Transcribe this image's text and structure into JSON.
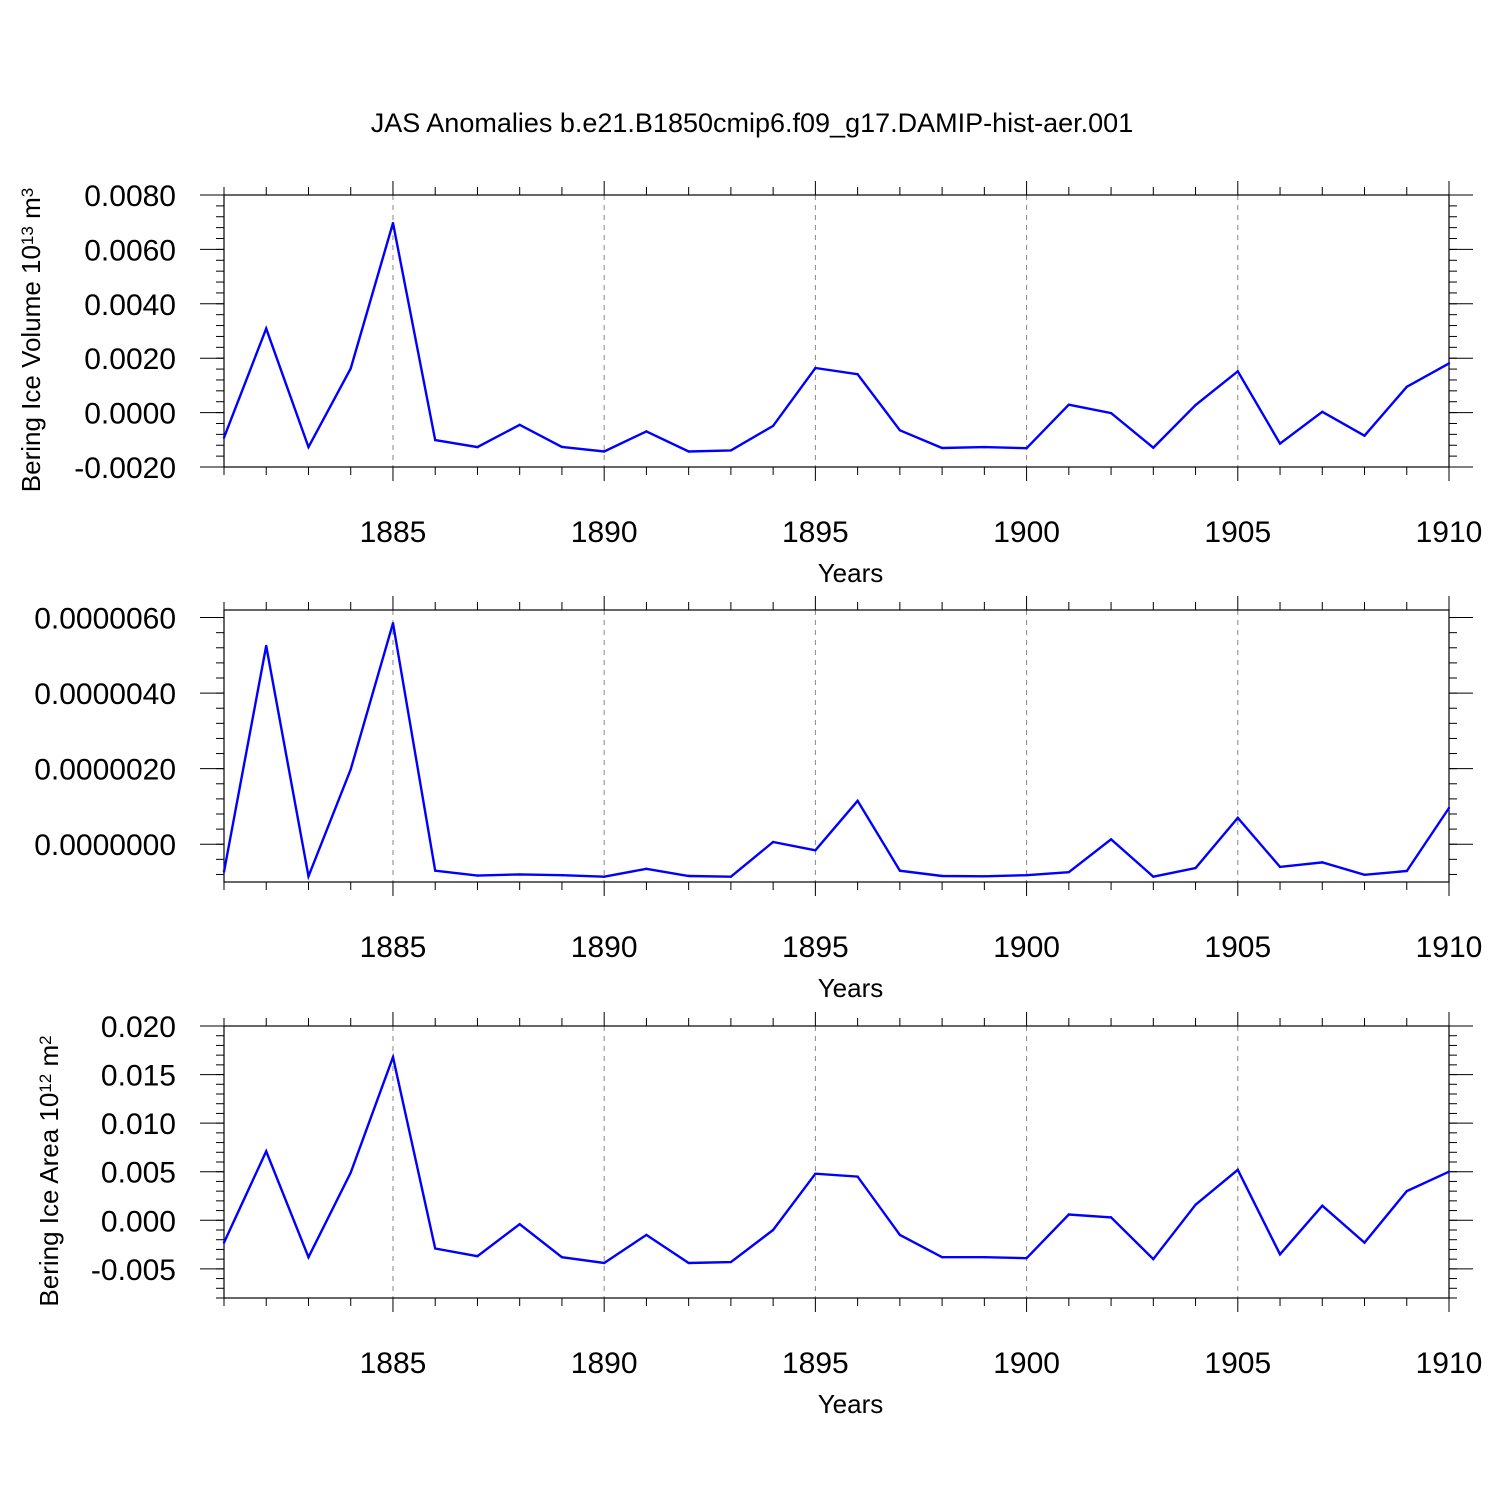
{
  "title": "JAS Anomalies b.e21.B1850cmip6.f09_g17.DAMIP-hist-aer.001",
  "colors": {
    "series": "#0000ff",
    "axis": "#000000",
    "grid": "#888888",
    "background": "#ffffff"
  },
  "chart_data": [
    {
      "type": "line",
      "title": "JAS Anomalies b.e21.B1850cmip6.f09_g17.DAMIP-hist-aer.001",
      "xlabel": "Years",
      "ylabel": {
        "base": "Bering Ice Volume 10",
        "exp": "13",
        "unit": " m",
        "unit_exp": "3"
      },
      "xlim": [
        1881,
        1910
      ],
      "ylim": [
        -0.002,
        0.008
      ],
      "xticks": [
        1885,
        1890,
        1895,
        1900,
        1905,
        1910
      ],
      "yticks": [
        -0.002,
        0.0,
        0.002,
        0.004,
        0.006,
        0.008
      ],
      "ytick_labels": [
        "-0.0020",
        "0.0000",
        "0.0020",
        "0.0040",
        "0.0060",
        "0.0080"
      ],
      "grid": "vertical dashed at major x ticks",
      "x": [
        1881,
        1882,
        1883,
        1884,
        1885,
        1886,
        1887,
        1888,
        1889,
        1890,
        1891,
        1892,
        1893,
        1894,
        1895,
        1896,
        1897,
        1898,
        1899,
        1900,
        1901,
        1902,
        1903,
        1904,
        1905,
        1906,
        1907,
        1908,
        1909,
        1910
      ],
      "values": [
        -0.00092,
        0.00309,
        -0.00127,
        0.00162,
        0.00697,
        -0.00101,
        -0.00127,
        -0.00045,
        -0.00126,
        -0.00143,
        -0.00069,
        -0.00143,
        -0.00139,
        -0.00049,
        0.00164,
        0.00141,
        -0.00065,
        -0.0013,
        -0.00127,
        -0.00131,
        0.00029,
        -2e-05,
        -0.00129,
        0.00028,
        0.00152,
        -0.00114,
        3e-05,
        -0.00085,
        0.00095,
        0.00181
      ]
    },
    {
      "type": "line",
      "title": "",
      "xlabel": "Years",
      "ylabel": {
        "base": "",
        "exp": "",
        "unit": "",
        "unit_exp": ""
      },
      "xlim": [
        1881,
        1910
      ],
      "ylim": [
        -1e-06,
        6.2e-06
      ],
      "xticks": [
        1885,
        1890,
        1895,
        1900,
        1905,
        1910
      ],
      "yticks": [
        0.0,
        2e-06,
        4e-06,
        6e-06
      ],
      "ytick_labels": [
        "0.0000000",
        "0.0000020",
        "0.0000040",
        "0.0000060"
      ],
      "grid": "vertical dashed at major x ticks",
      "x": [
        1881,
        1882,
        1883,
        1884,
        1885,
        1886,
        1887,
        1888,
        1889,
        1890,
        1891,
        1892,
        1893,
        1894,
        1895,
        1896,
        1897,
        1898,
        1899,
        1900,
        1901,
        1902,
        1903,
        1904,
        1905,
        1906,
        1907,
        1908,
        1909,
        1910
      ],
      "values": [
        -7.3e-07,
        5.25e-06,
        -8.5e-07,
        1.98e-06,
        5.85e-06,
        -7e-07,
        -8.3e-07,
        -8e-07,
        -8.2e-07,
        -8.6e-07,
        -6.5e-07,
        -8.4e-07,
        -8.6e-07,
        6e-08,
        -1.6e-07,
        1.15e-06,
        -7e-07,
        -8.4e-07,
        -8.5e-07,
        -8.2e-07,
        -7.4e-07,
        1.3e-07,
        -8.6e-07,
        -6.3e-07,
        7e-07,
        -6e-07,
        -4.8e-07,
        -8.1e-07,
        -7.1e-07,
        9.6e-07
      ]
    },
    {
      "type": "line",
      "title": "",
      "xlabel": "Years",
      "ylabel": {
        "base": "Bering Ice Area 10",
        "exp": "12",
        "unit": " m",
        "unit_exp": "2"
      },
      "xlim": [
        1881,
        1910
      ],
      "ylim": [
        -0.008,
        0.02
      ],
      "xticks": [
        1885,
        1890,
        1895,
        1900,
        1905,
        1910
      ],
      "yticks": [
        -0.005,
        0.0,
        0.005,
        0.01,
        0.015,
        0.02
      ],
      "ytick_labels": [
        "-0.005",
        "0.000",
        "0.005",
        "0.010",
        "0.015",
        "0.020"
      ],
      "grid": "vertical dashed at major x ticks",
      "x": [
        1881,
        1882,
        1883,
        1884,
        1885,
        1886,
        1887,
        1888,
        1889,
        1890,
        1891,
        1892,
        1893,
        1894,
        1895,
        1896,
        1897,
        1898,
        1899,
        1900,
        1901,
        1902,
        1903,
        1904,
        1905,
        1906,
        1907,
        1908,
        1909,
        1910
      ],
      "values": [
        -0.0023,
        0.0071,
        -0.0038,
        0.0049,
        0.0168,
        -0.0029,
        -0.0037,
        -0.0004,
        -0.0038,
        -0.0044,
        -0.0015,
        -0.0044,
        -0.0043,
        -0.001,
        0.0048,
        0.0045,
        -0.0015,
        -0.0038,
        -0.0038,
        -0.0039,
        0.0006,
        0.0003,
        -0.004,
        0.0016,
        0.0052,
        -0.0035,
        0.0015,
        -0.0023,
        0.003,
        0.005
      ]
    }
  ]
}
